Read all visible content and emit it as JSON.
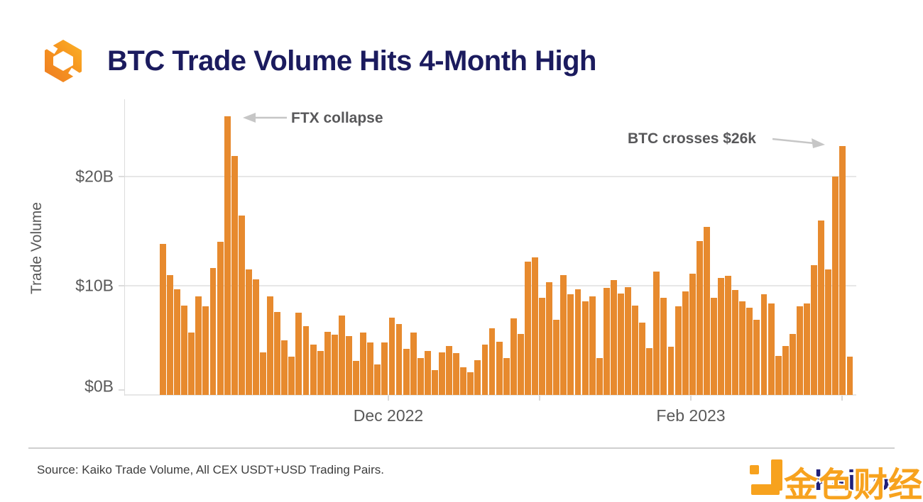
{
  "header": {
    "title": "BTC Trade Volume Hits 4-Month High"
  },
  "chart_data": {
    "type": "bar",
    "title": "BTC Trade Volume Hits 4-Month High",
    "xlabel": "",
    "ylabel": "Trade Volume",
    "unit": "USD billions",
    "ylim": [
      0,
      27
    ],
    "grid": "horizontal",
    "bar_color": "#E78A2E",
    "yticks": {
      "t0": "$0B",
      "t10": "$10B",
      "t20": "$20B"
    },
    "xticks": {
      "dec": "Dec 2022",
      "feb": "Feb 2023"
    },
    "values": [
      13.8,
      11.0,
      9.7,
      8.2,
      5.7,
      9.0,
      8.1,
      11.6,
      14.0,
      25.5,
      21.9,
      16.4,
      11.5,
      10.6,
      3.9,
      9.0,
      7.6,
      5.0,
      3.5,
      7.5,
      6.3,
      4.6,
      4.0,
      5.8,
      5.5,
      7.3,
      5.4,
      3.1,
      5.7,
      4.8,
      2.8,
      4.8,
      7.1,
      6.5,
      4.2,
      5.7,
      3.4,
      4.0,
      2.3,
      3.9,
      4.5,
      3.8,
      2.5,
      2.1,
      3.2,
      4.6,
      6.1,
      4.9,
      3.4,
      7.0,
      5.6,
      12.2,
      12.6,
      8.9,
      10.3,
      6.9,
      11.0,
      9.2,
      9.7,
      8.6,
      9.0,
      3.4,
      9.8,
      10.5,
      9.3,
      9.9,
      8.2,
      6.6,
      4.3,
      11.3,
      8.9,
      4.4,
      8.1,
      9.5,
      11.1,
      14.1,
      15.4,
      8.9,
      10.7,
      10.9,
      9.6,
      8.6,
      8.0,
      6.9,
      9.2,
      8.4,
      3.6,
      4.5,
      5.6,
      8.1,
      8.4,
      11.9,
      16.0,
      11.5,
      20.0,
      22.8,
      3.5
    ],
    "annotations": [
      {
        "label": "FTX collapse",
        "points_to_value": 25.5
      },
      {
        "label": "BTC crosses $26k",
        "points_to_value": 22.8
      }
    ]
  },
  "footer": {
    "source": "Source: Kaiko Trade Volume, All CEX USDT+USD Trading Pairs.",
    "watermark_cjk": "金色财经",
    "watermark_latin": "kaiko"
  }
}
